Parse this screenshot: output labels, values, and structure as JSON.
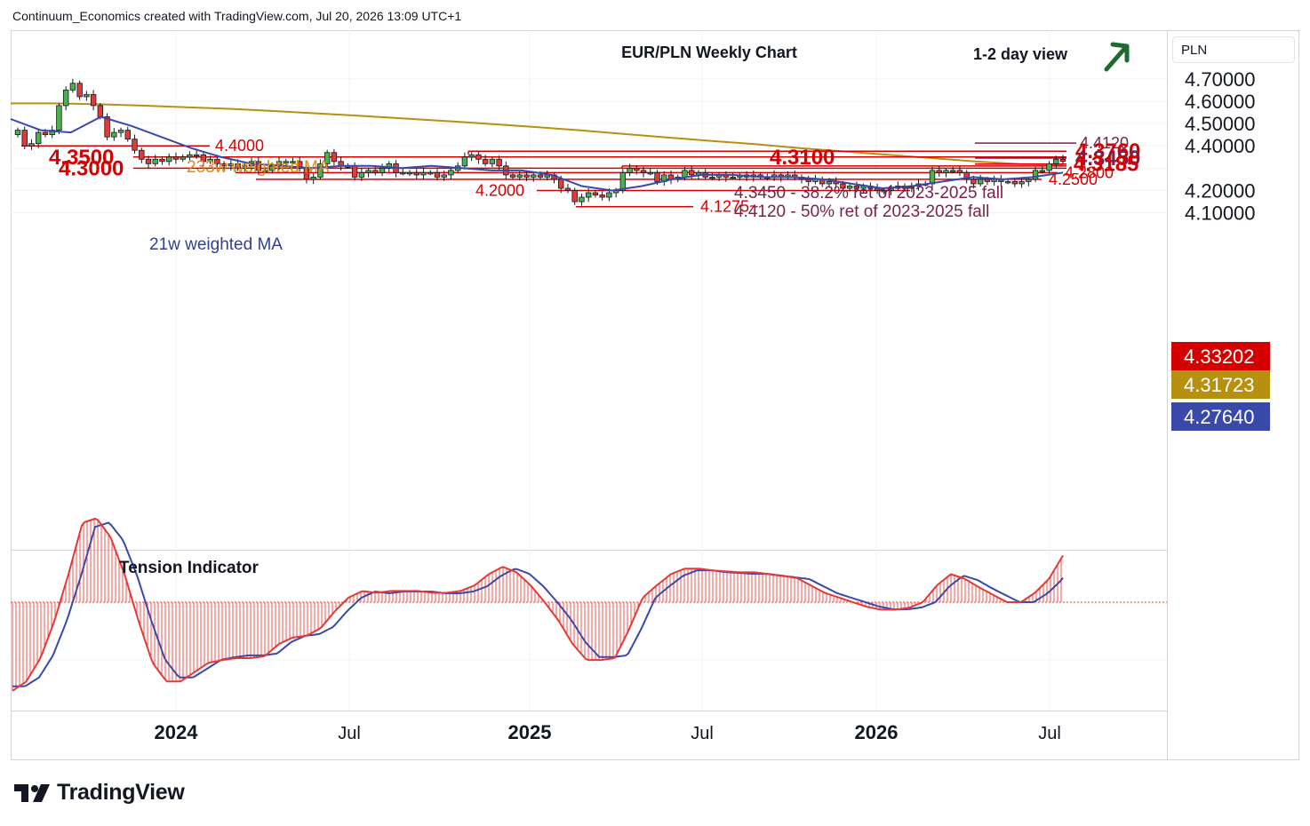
{
  "header": {
    "attribution": "Continuum_Economics created with TradingView.com, Jul 20, 2026 13:09 UTC+1"
  },
  "brand": {
    "name": "TradingView",
    "icon": "tradingview-logo-icon"
  },
  "chart_data": {
    "type": "candlestick",
    "title": "EUR/PLN Weekly Chart",
    "view_label": "1-2 day view",
    "view_direction": "up",
    "currency_label": "PLN",
    "y_range": [
      4.065,
      4.735
    ],
    "y_ticks": [
      "4.10000",
      "4.20000",
      "4.40000",
      "4.50000",
      "4.60000",
      "4.70000"
    ],
    "x_ticks": [
      "2024",
      "Jul",
      "2025",
      "Jul",
      "2026",
      "Jul"
    ],
    "price_badges": [
      {
        "value": "4.33202",
        "color": "#d50000",
        "label": "last-price"
      },
      {
        "value": "4.31723",
        "color": "#b8900f",
        "label": "233w-ma"
      },
      {
        "value": "4.27640",
        "color": "#3949ab",
        "label": "21w-ma"
      }
    ],
    "ma_labels": {
      "long": "233w weighted MA",
      "short": "21w weighted MA"
    },
    "annotations": [
      "4.3450 - 38.2% ret of 2023-2025 fall",
      "4.4120 - 50% ret of 2023-2025 fall"
    ],
    "levels": [
      {
        "value": 4.412,
        "label": "4.4120",
        "color": "#7b1f4a"
      },
      {
        "value": 4.376,
        "label": "4.3760",
        "color": "#d50000"
      },
      {
        "value": 4.345,
        "label": "4.3450",
        "color": "#7b1f4a"
      },
      {
        "value": 4.3185,
        "label": "4.3185",
        "color": "#d50000"
      },
      {
        "value": 4.31,
        "label": "4.3100",
        "color": "#d50000"
      },
      {
        "value": 4.4,
        "label": "4.4000",
        "color": "#d50000"
      },
      {
        "value": 4.35,
        "label": "4.3500",
        "color": "#d50000"
      },
      {
        "value": 4.3,
        "label": "4.3000",
        "color": "#d50000"
      },
      {
        "value": 4.28,
        "label": "4.2800",
        "color": "#d50000"
      },
      {
        "value": 4.25,
        "label": "4.2500",
        "color": "#d50000"
      },
      {
        "value": 4.2,
        "label": "4.2000",
        "color": "#d50000"
      },
      {
        "value": 4.1275,
        "label": "4.1275~",
        "color": "#d50000"
      }
    ],
    "candles_close": [
      4.47,
      4.4,
      4.41,
      4.46,
      4.45,
      4.47,
      4.58,
      4.65,
      4.68,
      4.62,
      4.63,
      4.58,
      4.53,
      4.44,
      4.46,
      4.47,
      4.43,
      4.38,
      4.34,
      4.32,
      4.34,
      4.33,
      4.35,
      4.34,
      4.35,
      4.36,
      4.36,
      4.33,
      4.34,
      4.32,
      4.31,
      4.32,
      4.3,
      4.31,
      4.33,
      4.29,
      4.29,
      4.31,
      4.33,
      4.33,
      4.33,
      4.3,
      4.25,
      4.26,
      4.32,
      4.37,
      4.33,
      4.31,
      4.31,
      4.26,
      4.28,
      4.29,
      4.28,
      4.3,
      4.32,
      4.28,
      4.28,
      4.28,
      4.27,
      4.28,
      4.28,
      4.26,
      4.27,
      4.29,
      4.31,
      4.35,
      4.36,
      4.34,
      4.32,
      4.34,
      4.31,
      4.27,
      4.26,
      4.27,
      4.26,
      4.27,
      4.26,
      4.27,
      4.25,
      4.21,
      4.2,
      4.15,
      4.17,
      4.19,
      4.18,
      4.17,
      4.19,
      4.2,
      4.28,
      4.3,
      4.29,
      4.28,
      4.28,
      4.24,
      4.27,
      4.25,
      4.26,
      4.29,
      4.27,
      4.28,
      4.26,
      4.26,
      4.27,
      4.26,
      4.26,
      4.27,
      4.26,
      4.27,
      4.26,
      4.26,
      4.27,
      4.26,
      4.27,
      4.26,
      4.25,
      4.24,
      4.25,
      4.23,
      4.24,
      4.23,
      4.21,
      4.22,
      4.21,
      4.22,
      4.21,
      4.2,
      4.2,
      4.21,
      4.22,
      4.21,
      4.22,
      4.23,
      4.23,
      4.29,
      4.28,
      4.29,
      4.29,
      4.28,
      4.25,
      4.23,
      4.25,
      4.24,
      4.25,
      4.24,
      4.24,
      4.23,
      4.24,
      4.25,
      4.29,
      4.29,
      4.32,
      4.34,
      4.33
    ],
    "ma233_values": [
      4.59,
      4.59,
      4.586,
      4.58,
      4.573,
      4.566,
      4.556,
      4.545,
      4.534,
      4.522,
      4.51,
      4.497,
      4.484,
      4.469,
      4.453,
      4.437,
      4.422,
      4.407,
      4.39,
      4.375,
      4.36,
      4.345,
      4.33,
      4.319,
      4.317
    ],
    "ma21_values": [
      4.52,
      4.47,
      4.46,
      4.53,
      4.49,
      4.44,
      4.39,
      4.35,
      4.32,
      4.31,
      4.3,
      4.31,
      4.31,
      4.3,
      4.31,
      4.3,
      4.29,
      4.29,
      4.27,
      4.22,
      4.2,
      4.22,
      4.25,
      4.27,
      4.27,
      4.26,
      4.26,
      4.25,
      4.23,
      4.21,
      4.22,
      4.24,
      4.26,
      4.25,
      4.26,
      4.28
    ],
    "tension": {
      "title": "Tension Indicator",
      "hist": [
        -0.95,
        -0.85,
        -0.6,
        -0.2,
        0.3,
        0.85,
        0.9,
        0.7,
        0.3,
        -0.2,
        -0.65,
        -0.85,
        -0.85,
        -0.75,
        -0.65,
        -0.62,
        -0.6,
        -0.6,
        -0.58,
        -0.45,
        -0.38,
        -0.36,
        -0.28,
        -0.1,
        0.05,
        0.12,
        0.1,
        0.12,
        0.12,
        0.12,
        0.1,
        0.1,
        0.12,
        0.18,
        0.3,
        0.38,
        0.32,
        0.18,
        0.0,
        -0.2,
        -0.45,
        -0.62,
        -0.62,
        -0.6,
        -0.3,
        0.05,
        0.18,
        0.3,
        0.36,
        0.36,
        0.34,
        0.33,
        0.32,
        0.32,
        0.3,
        0.28,
        0.26,
        0.18,
        0.1,
        0.05,
        0.0,
        -0.05,
        -0.08,
        -0.08,
        -0.06,
        0.0,
        0.18,
        0.3,
        0.25,
        0.16,
        0.08,
        0.0,
        0.0,
        0.1,
        0.25,
        0.5
      ]
    }
  }
}
